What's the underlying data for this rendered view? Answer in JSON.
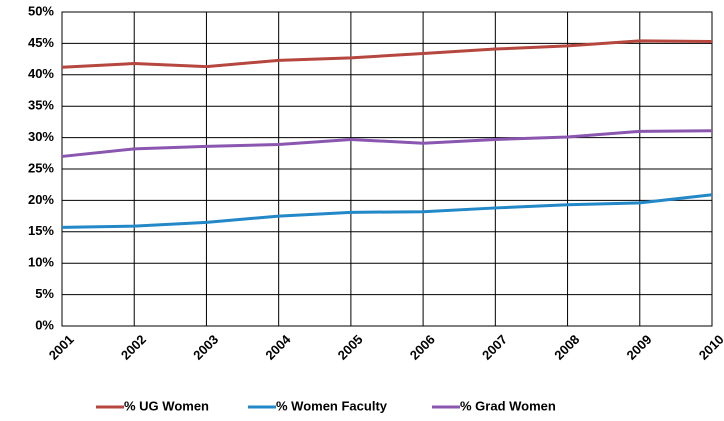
{
  "chart_data": {
    "type": "line",
    "categories": [
      "2001",
      "2002",
      "2003",
      "2004",
      "2005",
      "2006",
      "2007",
      "2008",
      "2009",
      "2010"
    ],
    "series": [
      {
        "name": "% UG Women",
        "color": "#b5473f",
        "values": [
          41.2,
          41.8,
          41.3,
          42.3,
          42.7,
          43.4,
          44.1,
          44.6,
          45.4,
          45.3
        ]
      },
      {
        "name": "% Women Faculty",
        "color": "#2288c8",
        "values": [
          15.7,
          15.9,
          16.5,
          17.5,
          18.1,
          18.2,
          18.8,
          19.3,
          19.6,
          20.9
        ]
      },
      {
        "name": "% Grad Women",
        "color": "#8a56b0",
        "values": [
          27.0,
          28.2,
          28.6,
          28.9,
          29.7,
          29.1,
          29.7,
          30.1,
          31.0,
          31.1
        ]
      }
    ],
    "ylim": [
      0,
      50
    ],
    "yticks": [
      {
        "value": 0,
        "label": "0%"
      },
      {
        "value": 5,
        "label": "5%"
      },
      {
        "value": 10,
        "label": "10%"
      },
      {
        "value": 15,
        "label": "15%"
      },
      {
        "value": 20,
        "label": "20%"
      },
      {
        "value": 25,
        "label": "25%"
      },
      {
        "value": 30,
        "label": "30%"
      },
      {
        "value": 35,
        "label": "35%"
      },
      {
        "value": 40,
        "label": "40%"
      },
      {
        "value": 45,
        "label": "45%"
      },
      {
        "value": 50,
        "label": "50%"
      }
    ],
    "grid": true,
    "legend": "bottom"
  }
}
